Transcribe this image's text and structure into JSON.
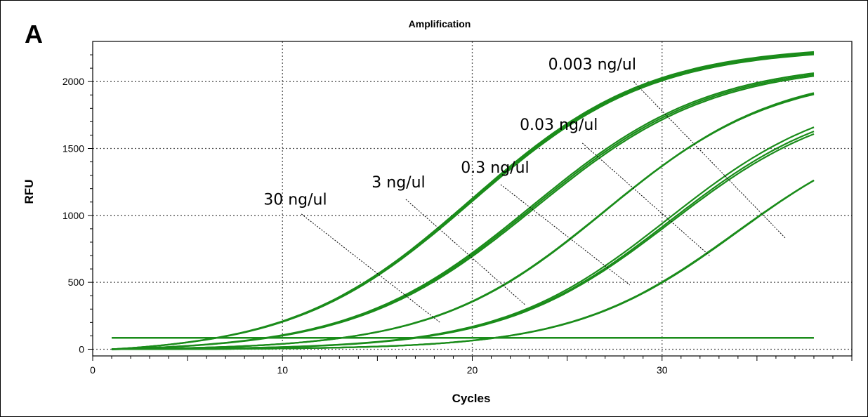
{
  "panel_label": "A",
  "chart_data": {
    "type": "line",
    "title": "Amplification",
    "xlabel": "Cycles",
    "ylabel": "RFU",
    "xlim": [
      0,
      40
    ],
    "ylim": [
      -50,
      2300
    ],
    "xticks": [
      0,
      10,
      20,
      30
    ],
    "yticks": [
      0,
      500,
      1000,
      1500,
      2000
    ],
    "grid": true,
    "threshold": 85,
    "line_color": "#1a8c1a",
    "series": [
      {
        "name": "30 ng/ul",
        "replicates": [
          [
            38,
            19.9,
            2310,
            4.7
          ],
          [
            38,
            20.0,
            2290,
            4.7
          ],
          [
            38,
            19.95,
            2300,
            4.7
          ]
        ]
      },
      {
        "name": "3 ng/ul",
        "replicates": [
          [
            38,
            23.1,
            2170,
            4.7
          ],
          [
            38,
            23.3,
            2150,
            4.7
          ],
          [
            38,
            23.2,
            2160,
            4.7
          ]
        ]
      },
      {
        "name": "0.3 ng/ul",
        "replicates": [
          [
            38,
            27.0,
            2080,
            4.5
          ],
          [
            38,
            27.05,
            2090,
            4.5
          ],
          [
            38,
            26.95,
            2075,
            4.5
          ]
        ]
      },
      {
        "name": "0.03 ng/ul",
        "replicates": [
          [
            38,
            30.3,
            1950,
            4.4
          ],
          [
            38,
            30.45,
            1900,
            4.4
          ],
          [
            38,
            30.4,
            1920,
            4.4
          ]
        ]
      },
      {
        "name": "0.003 ng/ul",
        "replicates": [
          [
            38,
            33.9,
            1750,
            4.3
          ],
          [
            38,
            34.0,
            1760,
            4.3
          ],
          [
            38,
            33.95,
            1755,
            4.3
          ]
        ]
      }
    ]
  }
}
